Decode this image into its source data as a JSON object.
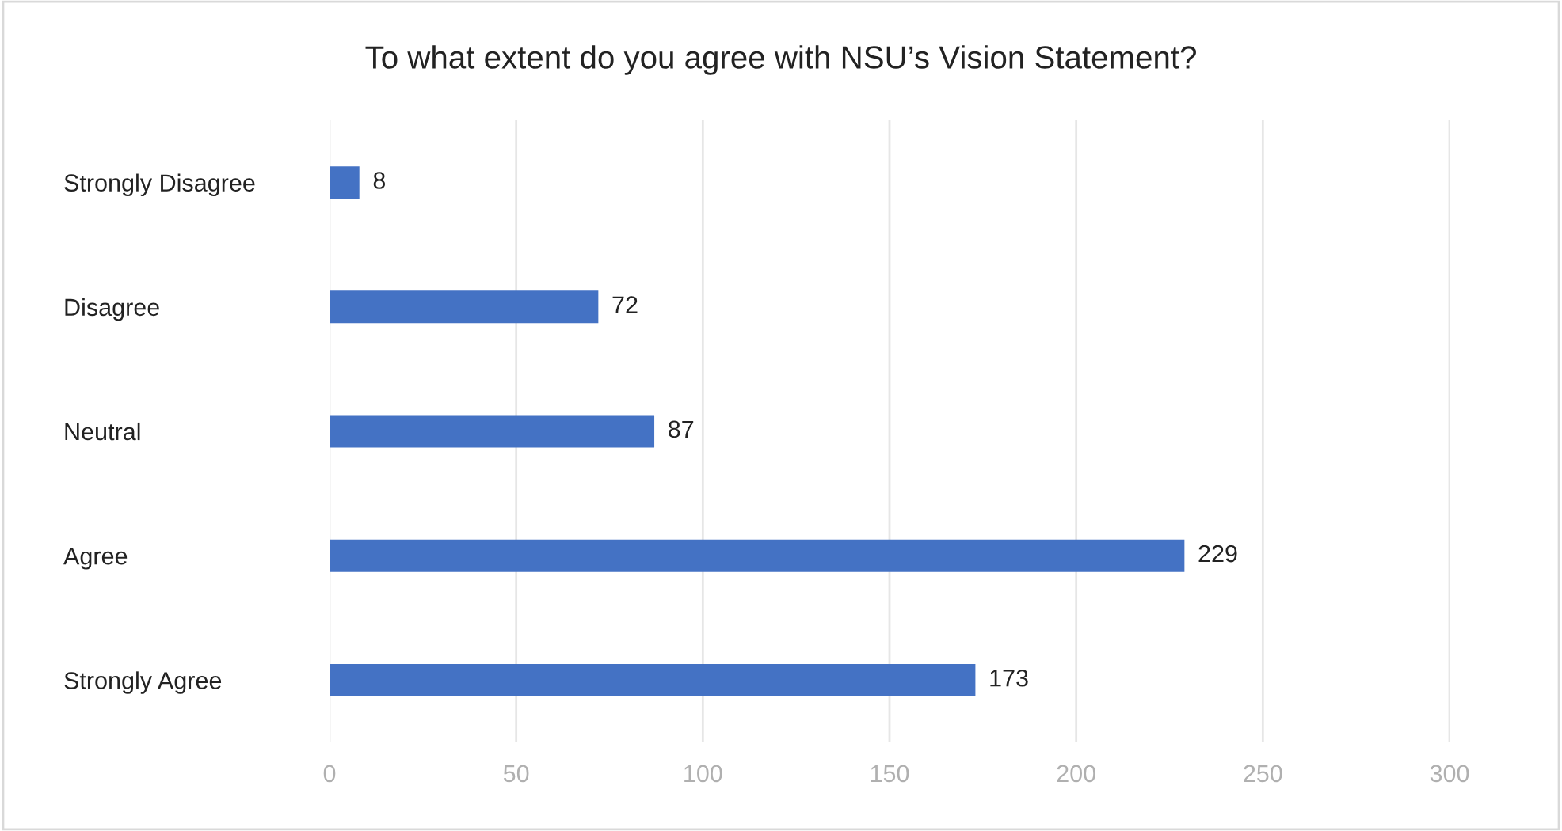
{
  "chart_data": {
    "type": "bar",
    "orientation": "horizontal",
    "title": "To what extent do you agree with NSU’s Vision Statement?",
    "categories": [
      "Strongly Disagree",
      "Disagree",
      "Neutral",
      "Agree",
      "Strongly Agree"
    ],
    "values": [
      8,
      72,
      87,
      229,
      173
    ],
    "color": "#4472c4",
    "xlim": [
      0,
      300
    ],
    "xticks": [
      0,
      50,
      100,
      150,
      200,
      250,
      300
    ],
    "grid": "x",
    "data_labels": true
  }
}
